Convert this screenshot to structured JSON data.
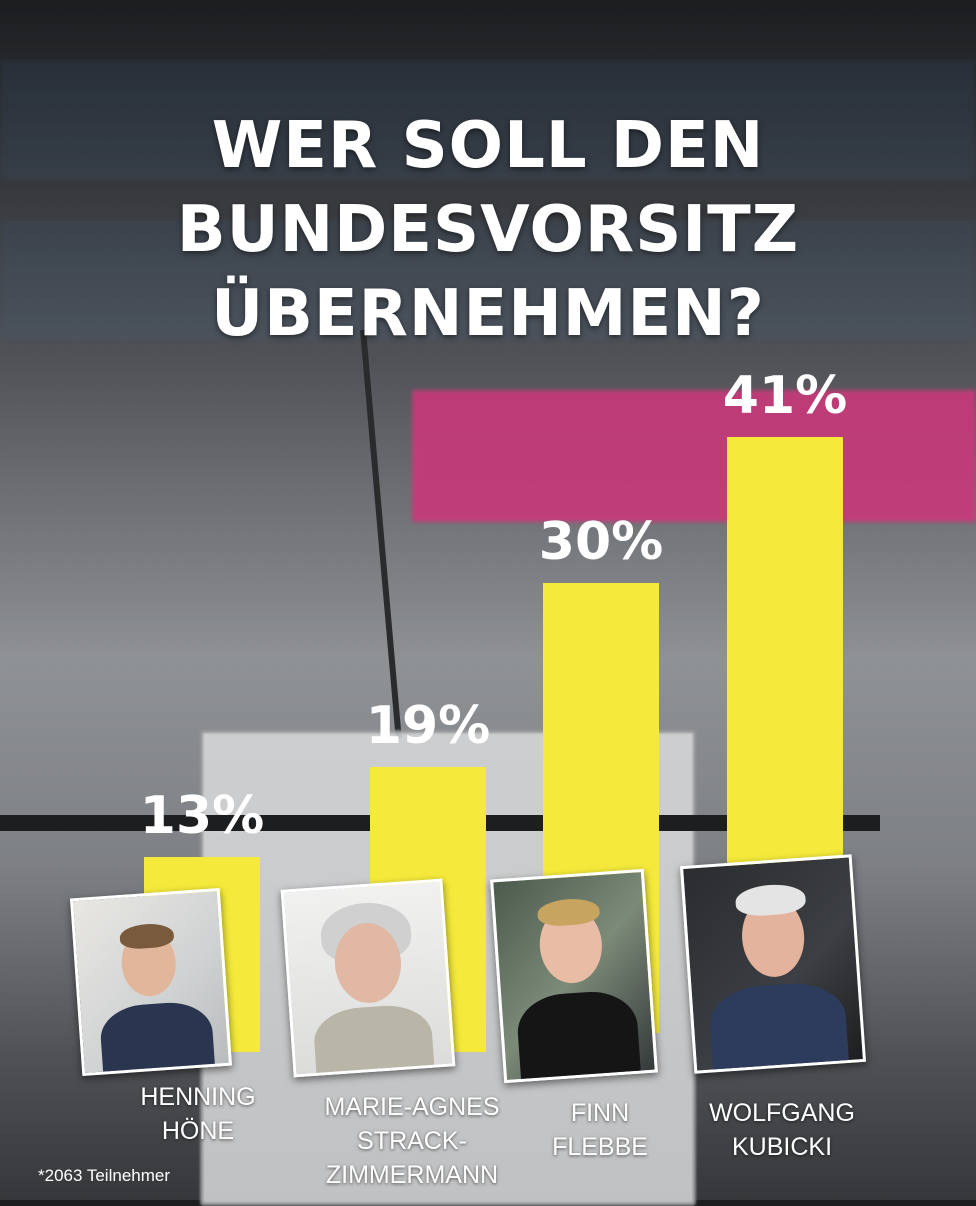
{
  "title_lines": [
    "WER SOLL DEN",
    "BUNDESVORSITZ",
    "ÜBERNEHMEN?"
  ],
  "footnote": "*2063 Teilnehmer",
  "colors": {
    "bar": "#f5ea3b",
    "text": "#ffffff"
  },
  "chart_data": {
    "type": "bar",
    "title": "WER SOLL DEN BUNDESVORSITZ ÜBERNEHMEN?",
    "categories": [
      "HENNING HÖNE",
      "MARIE-AGNES STRACK-ZIMMERMANN",
      "FINN FLEBBE",
      "WOLFGANG KUBICKI"
    ],
    "values": [
      13,
      19,
      30,
      41
    ],
    "labels": [
      "13%",
      "19%",
      "30%",
      "41%"
    ],
    "unit": "%",
    "ylim": [
      0,
      45
    ],
    "grid": false,
    "legend": "none"
  },
  "candidates": [
    {
      "name_lines": [
        "HENNING",
        "HÖNE"
      ]
    },
    {
      "name_lines": [
        "MARIE-AGNES",
        "STRACK-",
        "ZIMMERMANN"
      ]
    },
    {
      "name_lines": [
        "FINN",
        "FLEBBE"
      ]
    },
    {
      "name_lines": [
        "WOLFGANG",
        "KUBICKI"
      ]
    }
  ]
}
